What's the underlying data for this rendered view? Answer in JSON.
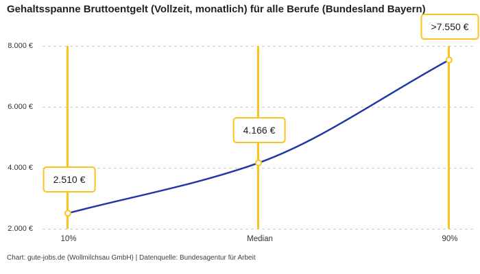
{
  "title": "Gehaltsspanne Bruttoentgelt (Vollzeit, monatlich) für alle Berufe (Bundesland Bayern)",
  "footer": "Chart: gute-jobs.de (Wollmilchsau GmbH) | Datenquelle: Bundesagentur für Arbeit",
  "colors": {
    "accent_yellow": "#FBC31C",
    "line_blue": "#2138A8",
    "grid": "#cccccc",
    "title_text": "#222222",
    "axis_text": "#333333"
  },
  "chart_data": {
    "type": "line",
    "title": "Gehaltsspanne Bruttoentgelt (Vollzeit, monatlich) für alle Berufe (Bundesland Bayern)",
    "categories": [
      "10%",
      "Median",
      "90%"
    ],
    "values": [
      2510,
      4166,
      7550
    ],
    "point_labels": [
      "2.510 €",
      "4.166 €",
      ">7.550 €"
    ],
    "xlabel": "",
    "ylabel": "",
    "ylim": [
      2000,
      8000
    ],
    "yticks": [
      2000,
      4000,
      6000,
      8000
    ],
    "ytick_labels": [
      "2.000 €",
      "4.000 €",
      "6.000 €",
      "8.000 €"
    ],
    "grid": "horizontal-dashed",
    "legend": "none",
    "curve": "monotone",
    "annotation_note": "vertical accent lines mark the 10th percentile, median and 90th percentile"
  }
}
